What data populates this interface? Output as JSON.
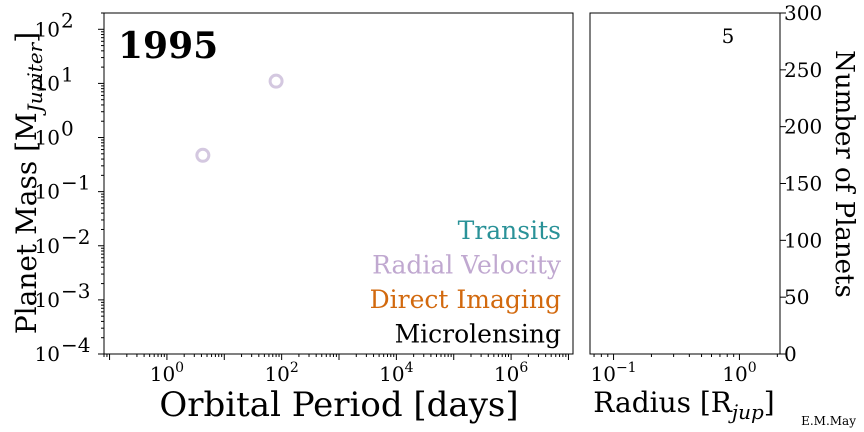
{
  "chart_data": [
    {
      "type": "scatter",
      "year_label": "1995",
      "xlabel": "Orbital Period [days]",
      "ylabel": "Planet Mass [M",
      "ylabel_sub": "Jupiter",
      "ylabel_end": "]",
      "xscale": "log",
      "yscale": "log",
      "xlim": [
        0.08,
        12000000.0
      ],
      "ylim": [
        0.0001,
        200
      ],
      "x_ticks": [
        {
          "value": 1,
          "base": "10",
          "exp": "0"
        },
        {
          "value": 100,
          "base": "10",
          "exp": "2"
        },
        {
          "value": 10000,
          "base": "10",
          "exp": "4"
        },
        {
          "value": 1000000,
          "base": "10",
          "exp": "6"
        }
      ],
      "y_ticks": [
        {
          "value": 0.0001,
          "base": "10",
          "exp": "−4"
        },
        {
          "value": 0.001,
          "base": "10",
          "exp": "−3"
        },
        {
          "value": 0.01,
          "base": "10",
          "exp": "−2"
        },
        {
          "value": 0.1,
          "base": "10",
          "exp": "−1"
        },
        {
          "value": 1,
          "base": "10",
          "exp": "0"
        },
        {
          "value": 10,
          "base": "10",
          "exp": "1"
        },
        {
          "value": 100,
          "base": "10",
          "exp": "2"
        }
      ],
      "points": [
        {
          "x": 4.23,
          "y": 0.47,
          "method": "Radial Velocity"
        },
        {
          "x": 80,
          "y": 11,
          "method": "Radial Velocity"
        }
      ],
      "legend": [
        {
          "label": "Transits",
          "color": "#2a9298"
        },
        {
          "label": "Radial Velocity",
          "color": "#c0a8d0"
        },
        {
          "label": "Direct Imaging",
          "color": "#d2690e"
        },
        {
          "label": "Microlensing",
          "color": "#000000"
        }
      ],
      "legend_position": "bottom-right",
      "marker_color": "#d4c8e0"
    },
    {
      "type": "bar",
      "xlabel": "Radius [R",
      "xlabel_sub": "jup",
      "xlabel_end": "]",
      "ylabel": "Number of Planets",
      "xscale": "log",
      "xlim": [
        0.065,
        2.1
      ],
      "ylim": [
        0,
        300
      ],
      "x_ticks": [
        {
          "value": 0.1,
          "base": "10",
          "exp": "−1"
        },
        {
          "value": 1,
          "base": "10",
          "exp": "0"
        }
      ],
      "y_ticks": [
        0,
        50,
        100,
        150,
        200,
        250,
        300
      ],
      "count_label": "5",
      "values": []
    }
  ],
  "credit": "E.M.May"
}
